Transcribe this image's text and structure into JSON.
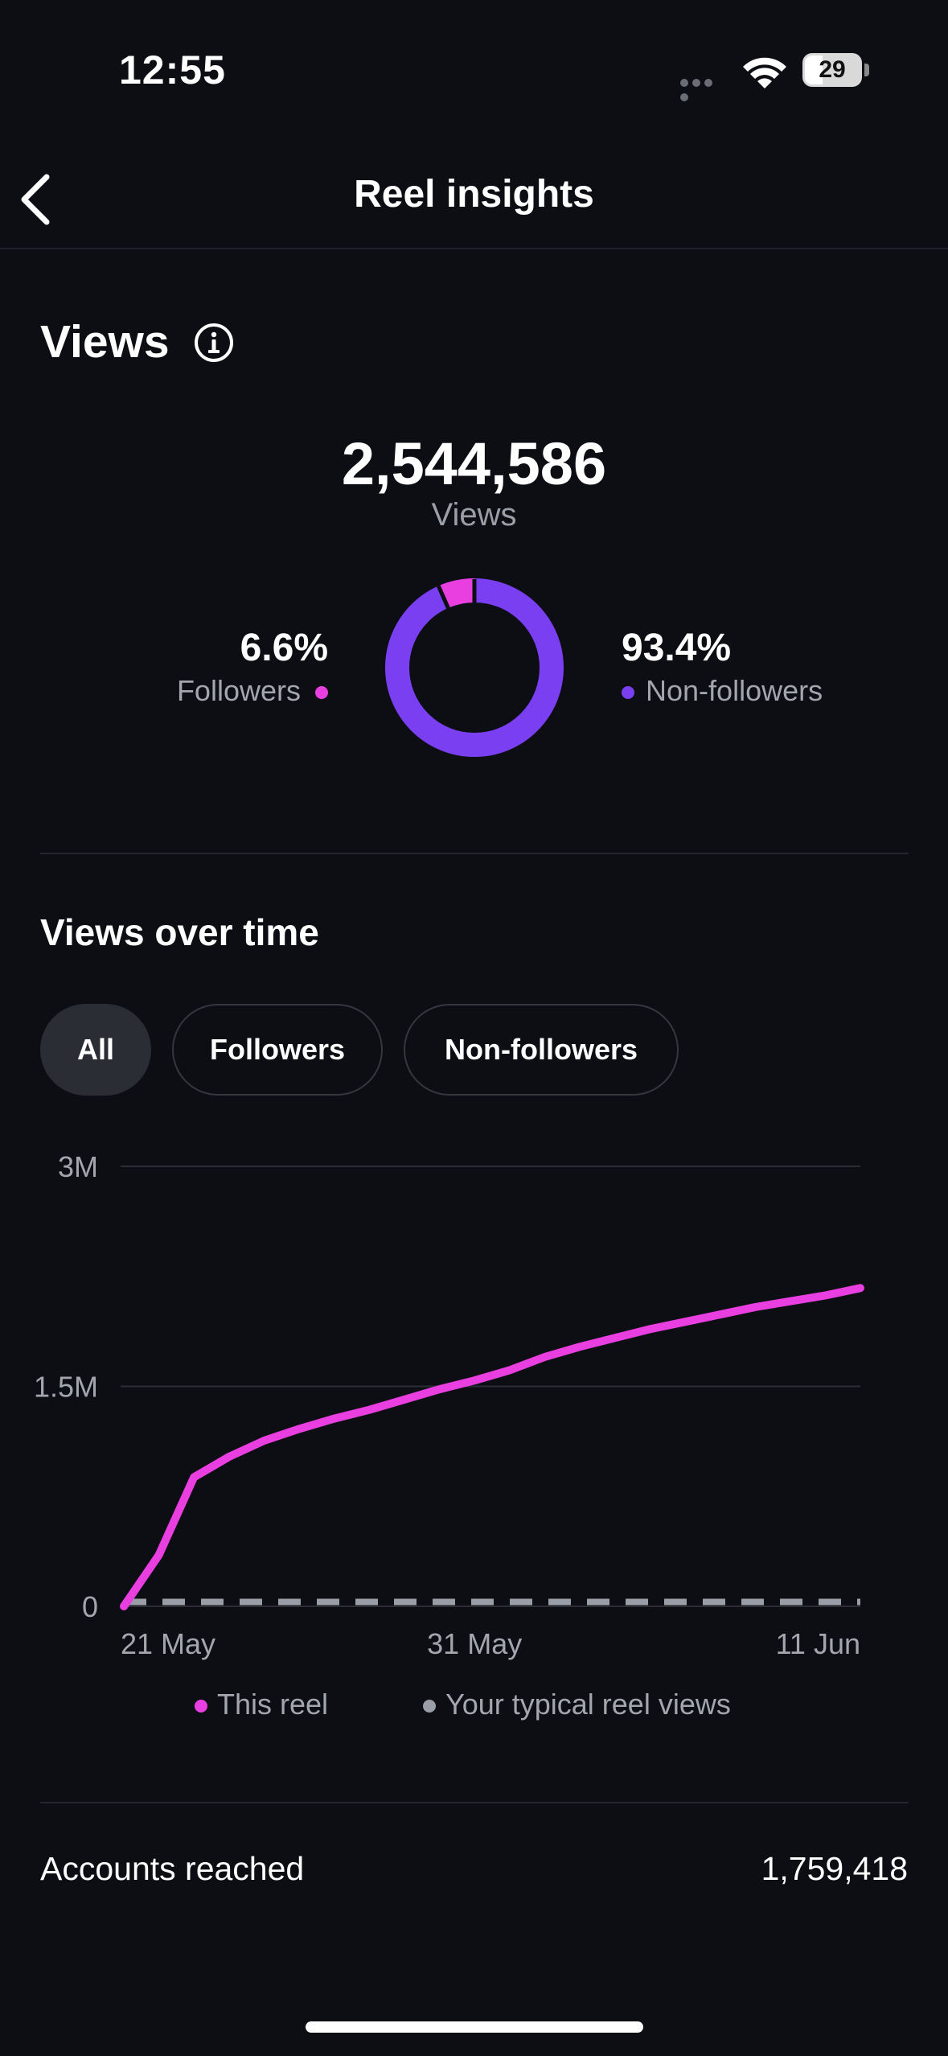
{
  "status_bar": {
    "time": "12:55",
    "battery": "29"
  },
  "header": {
    "title": "Reel insights",
    "back_icon": "chevron-left-icon"
  },
  "views": {
    "title": "Views",
    "info_icon": "info-icon",
    "total": "2,544,586",
    "total_label": "Views",
    "followers_pct": "6.6%",
    "followers_label": "Followers",
    "nonfollowers_pct": "93.4%",
    "nonfollowers_label": "Non-followers",
    "colors": {
      "followers": "#e93ee0",
      "nonfollowers": "#7b3ff2"
    }
  },
  "views_over_time": {
    "title": "Views over time",
    "filters": [
      {
        "label": "All",
        "active": true
      },
      {
        "label": "Followers",
        "active": false
      },
      {
        "label": "Non-followers",
        "active": false
      }
    ]
  },
  "chart_data": {
    "type": "line",
    "y_ticks": [
      "3M",
      "1.5M",
      "0"
    ],
    "x_ticks": [
      "21 May",
      "31 May",
      "11 Jun"
    ],
    "ylim": [
      0,
      3000000
    ],
    "grid": true,
    "series": [
      {
        "name": "This reel",
        "color": "#e93ee0",
        "style": "solid",
        "x": [
          "21 May",
          "22 May",
          "23 May",
          "24 May",
          "25 May",
          "26 May",
          "27 May",
          "28 May",
          "29 May",
          "30 May",
          "31 May",
          "1 Jun",
          "2 Jun",
          "3 Jun",
          "4 Jun",
          "5 Jun",
          "6 Jun",
          "7 Jun",
          "8 Jun",
          "9 Jun",
          "10 Jun",
          "11 Jun"
        ],
        "values": [
          0,
          350000,
          880000,
          1020000,
          1130000,
          1210000,
          1280000,
          1340000,
          1410000,
          1480000,
          1540000,
          1610000,
          1700000,
          1770000,
          1830000,
          1890000,
          1940000,
          1990000,
          2040000,
          2080000,
          2120000,
          2170000
        ]
      },
      {
        "name": "Your typical reel views",
        "color": "#9a9ea6",
        "style": "dashed",
        "x": [
          "21 May",
          "22 May",
          "23 May",
          "24 May",
          "25 May",
          "26 May",
          "27 May",
          "28 May",
          "29 May",
          "30 May",
          "31 May",
          "1 Jun",
          "2 Jun",
          "3 Jun",
          "4 Jun",
          "5 Jun",
          "6 Jun",
          "7 Jun",
          "8 Jun",
          "9 Jun",
          "10 Jun",
          "11 Jun"
        ],
        "values": [
          30000,
          30000,
          30000,
          30000,
          30000,
          30000,
          30000,
          30000,
          30000,
          30000,
          30000,
          30000,
          30000,
          30000,
          30000,
          30000,
          30000,
          30000,
          30000,
          30000,
          30000,
          30000
        ]
      }
    ],
    "legend": [
      "This reel",
      "Your typical reel views"
    ],
    "legend_position": "bottom"
  },
  "accounts_reached": {
    "label": "Accounts reached",
    "value": "1,759,418"
  }
}
